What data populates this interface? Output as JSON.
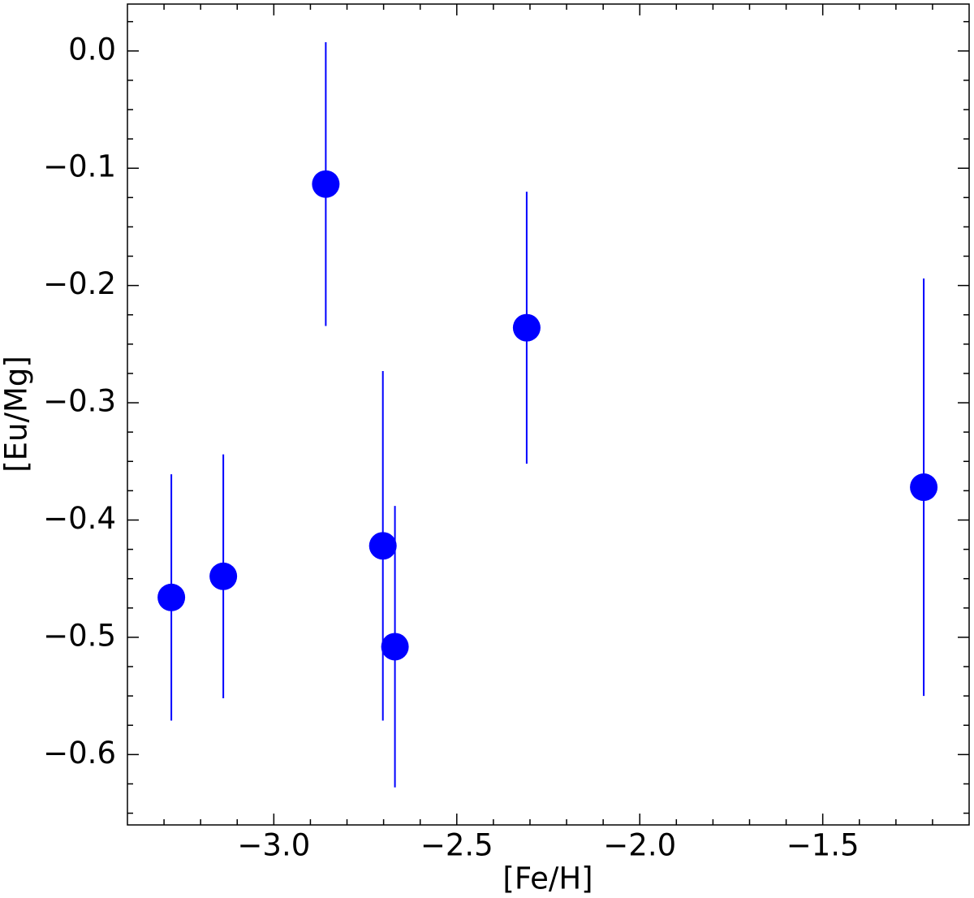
{
  "chart_data": {
    "type": "scatter",
    "xlabel": "[Fe/H]",
    "ylabel": "[Eu/Mg]",
    "color": "#0000ff",
    "x": [
      -3.28,
      -3.138,
      -2.858,
      -2.702,
      -2.669,
      -2.309,
      -1.224
    ],
    "values": [
      -0.466,
      -0.448,
      -0.1135,
      -0.422,
      -0.508,
      -0.236,
      -0.372
    ],
    "errors": [
      0.105,
      0.104,
      0.121,
      0.149,
      0.12,
      0.116,
      0.178
    ],
    "xlim": [
      -3.4,
      -1.1
    ],
    "ylim": [
      -0.66,
      0.04
    ],
    "xticks": [
      {
        "value": -3.0,
        "label": "−3.0"
      },
      {
        "value": -2.5,
        "label": "−2.5"
      },
      {
        "value": -2.0,
        "label": "−2.0"
      },
      {
        "value": -1.5,
        "label": "−1.5"
      }
    ],
    "yticks": [
      {
        "value": 0.0,
        "label": "0.0"
      },
      {
        "value": -0.1,
        "label": "−0.1"
      },
      {
        "value": -0.2,
        "label": "−0.2"
      },
      {
        "value": -0.3,
        "label": "−0.3"
      },
      {
        "value": -0.4,
        "label": "−0.4"
      },
      {
        "value": -0.5,
        "label": "−0.5"
      },
      {
        "value": -0.6,
        "label": "−0.6"
      }
    ]
  }
}
